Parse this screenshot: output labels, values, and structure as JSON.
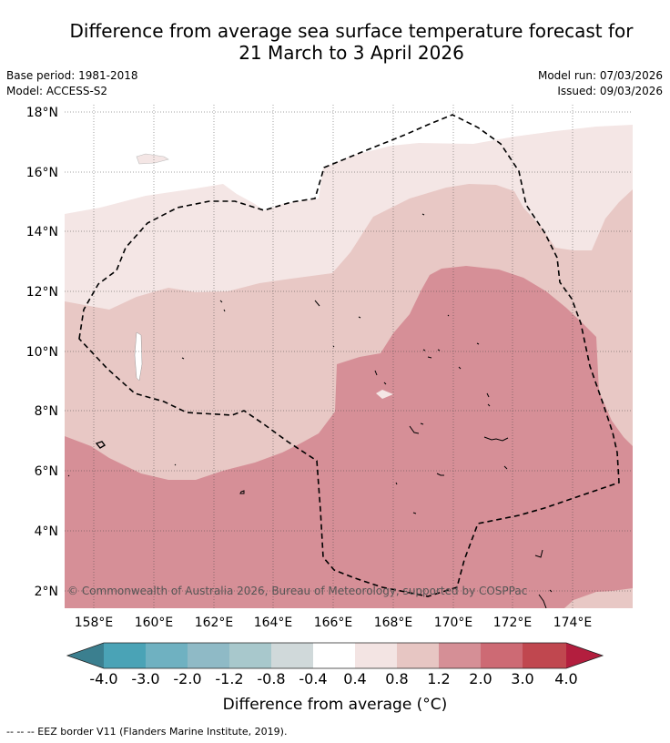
{
  "title": {
    "line1": "Difference from average sea surface temperature forecast for",
    "line2": "21 March to 3 April 2026"
  },
  "meta": {
    "base_period": "Base period: 1981-2018",
    "model": "Model: ACCESS-S2",
    "model_run": "Model run: 07/03/2026",
    "issued": "Issued: 09/03/2026"
  },
  "map": {
    "lat_labels": [
      "18°N",
      "16°N",
      "14°N",
      "12°N",
      "10°N",
      "8°N",
      "6°N",
      "4°N",
      "2°N"
    ],
    "lon_labels": [
      "158°E",
      "160°E",
      "162°E",
      "164°E",
      "166°E",
      "168°E",
      "170°E",
      "172°E",
      "174°E"
    ],
    "copyright": "© Commonwealth of Australia 2026, Bureau of Meteorology, supported by COSPPac"
  },
  "colorbar": {
    "labels": [
      "-4.0",
      "-3.0",
      "-2.0",
      "-1.2",
      "-0.8",
      "-0.4",
      "0.4",
      "0.8",
      "1.2",
      "2.0",
      "3.0",
      "4.0"
    ],
    "colors": [
      "#3b7f8f",
      "#4aa3b6",
      "#6fb1c1",
      "#8fbac6",
      "#a8c8cc",
      "#d0d9da",
      "#ffffff",
      "#f3e4e3",
      "#e7c6c3",
      "#d58f96",
      "#cd6a74",
      "#c0474f",
      "#b31e3e"
    ],
    "title": "Difference from average (°C)"
  },
  "footer": "-- -- -- EEZ border V11 (Flanders Marine Institute, 2019)."
}
